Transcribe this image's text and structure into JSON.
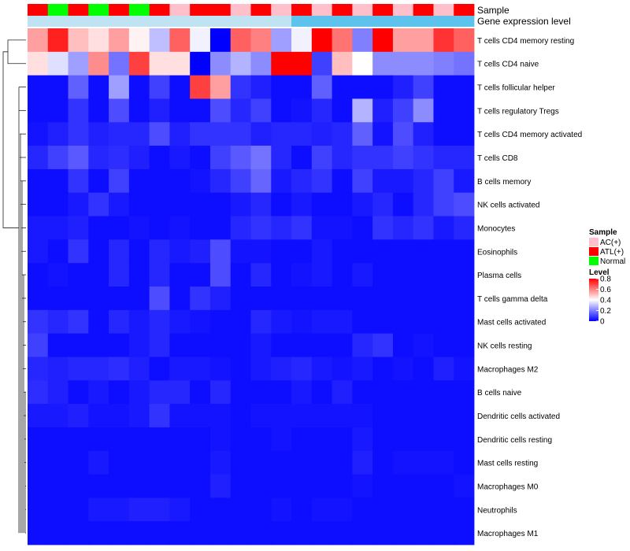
{
  "chart_data": {
    "type": "heatmap",
    "annotation_labels": {
      "sample": "Sample",
      "gene_expression": "Gene expression level"
    },
    "sample_annotation": [
      "ATL(+)",
      "Normal",
      "ATL(+)",
      "Normal",
      "ATL(+)",
      "Normal",
      "ATL(+)",
      "AC(+)",
      "ATL(+)",
      "ATL(+)",
      "AC(+)",
      "ATL(+)",
      "AC(+)",
      "ATL(+)",
      "AC(+)",
      "ATL(+)",
      "AC(+)",
      "ATL(+)",
      "AC(+)",
      "ATL(+)",
      "AC(+)",
      "ATL(+)"
    ],
    "gene_expression_colors": [
      "#bfe3f2",
      "#bfe3f2",
      "#bfe3f2",
      "#bfe3f2",
      "#bfe3f2",
      "#bfe3f2",
      "#bfe3f2",
      "#bfe3f2",
      "#bfe3f2",
      "#bfe3f2",
      "#bfe3f2",
      "#bfe3f2",
      "#bfe3f2",
      "#5ec3ec",
      "#5ec3ec",
      "#5ec3ec",
      "#5ec3ec",
      "#5ec3ec",
      "#5ec3ec",
      "#5ec3ec",
      "#5ec3ec",
      "#5ec3ec"
    ],
    "rows": [
      "T cells CD4 memory resting",
      "T cells CD4 naive",
      "T cells follicular helper",
      "T cells regulatory  Tregs",
      "T cells CD4 memory activated",
      "T cells CD8",
      "B cells memory",
      "NK cells activated",
      "Monocytes",
      "Eosinophils",
      "Plasma cells",
      "T cells gamma delta",
      "Mast cells activated",
      "NK cells resting",
      "Macrophages M2",
      "B cells naive",
      "Dendritic cells activated",
      "Dendritic cells resting",
      "Mast cells resting",
      "Macrophages M0",
      "Neutrophils",
      "Macrophages M1"
    ],
    "values": [
      [
        0.55,
        0.75,
        0.5,
        0.45,
        0.55,
        0.42,
        0.3,
        0.65,
        0.38,
        0.0,
        0.65,
        0.6,
        0.25,
        0.38,
        0.8,
        0.62,
        0.2,
        0.8,
        0.55,
        0.55,
        0.72,
        0.65
      ],
      [
        0.45,
        0.35,
        0.25,
        0.58,
        0.18,
        0.7,
        0.45,
        0.45,
        0.0,
        0.22,
        0.28,
        0.22,
        0.8,
        0.8,
        0.1,
        0.5,
        0.4,
        0.22,
        0.22,
        0.22,
        0.2,
        0.18
      ],
      [
        0.02,
        0.02,
        0.15,
        0.02,
        0.25,
        0.02,
        0.1,
        0.02,
        0.7,
        0.55,
        0.08,
        0.05,
        0.02,
        0.02,
        0.15,
        0.02,
        0.02,
        0.02,
        0.05,
        0.1,
        0.02,
        0.02
      ],
      [
        0.02,
        0.02,
        0.08,
        0.02,
        0.12,
        0.02,
        0.05,
        0.02,
        0.02,
        0.12,
        0.06,
        0.1,
        0.02,
        0.03,
        0.06,
        0.02,
        0.28,
        0.05,
        0.1,
        0.22,
        0.02,
        0.02
      ],
      [
        0.03,
        0.05,
        0.08,
        0.05,
        0.06,
        0.06,
        0.12,
        0.05,
        0.08,
        0.08,
        0.08,
        0.05,
        0.06,
        0.06,
        0.05,
        0.06,
        0.15,
        0.03,
        0.12,
        0.05,
        0.02,
        0.02
      ],
      [
        0.06,
        0.1,
        0.14,
        0.06,
        0.07,
        0.05,
        0.02,
        0.04,
        0.02,
        0.1,
        0.14,
        0.18,
        0.06,
        0.02,
        0.1,
        0.06,
        0.08,
        0.08,
        0.1,
        0.08,
        0.06,
        0.06
      ],
      [
        0.02,
        0.02,
        0.08,
        0.02,
        0.1,
        0.02,
        0.02,
        0.02,
        0.03,
        0.06,
        0.1,
        0.16,
        0.04,
        0.06,
        0.08,
        0.02,
        0.1,
        0.04,
        0.04,
        0.06,
        0.1,
        0.04
      ],
      [
        0.02,
        0.02,
        0.04,
        0.08,
        0.04,
        0.02,
        0.02,
        0.02,
        0.02,
        0.02,
        0.04,
        0.06,
        0.02,
        0.04,
        0.02,
        0.02,
        0.04,
        0.06,
        0.02,
        0.06,
        0.1,
        0.12
      ],
      [
        0.04,
        0.04,
        0.05,
        0.02,
        0.02,
        0.03,
        0.02,
        0.03,
        0.02,
        0.02,
        0.06,
        0.08,
        0.06,
        0.08,
        0.03,
        0.03,
        0.02,
        0.08,
        0.06,
        0.08,
        0.04,
        0.06
      ],
      [
        0.04,
        0.02,
        0.08,
        0.02,
        0.06,
        0.02,
        0.06,
        0.04,
        0.05,
        0.12,
        0.03,
        0.03,
        0.02,
        0.02,
        0.04,
        0.02,
        0.02,
        0.02,
        0.02,
        0.02,
        0.02,
        0.02
      ],
      [
        0.02,
        0.03,
        0.02,
        0.02,
        0.06,
        0.02,
        0.06,
        0.02,
        0.02,
        0.12,
        0.02,
        0.06,
        0.02,
        0.03,
        0.04,
        0.02,
        0.04,
        0.02,
        0.02,
        0.02,
        0.02,
        0.02
      ],
      [
        0.02,
        0.02,
        0.02,
        0.02,
        0.02,
        0.02,
        0.12,
        0.02,
        0.08,
        0.05,
        0.02,
        0.02,
        0.02,
        0.02,
        0.02,
        0.02,
        0.02,
        0.02,
        0.02,
        0.02,
        0.02,
        0.02
      ],
      [
        0.08,
        0.06,
        0.08,
        0.02,
        0.06,
        0.04,
        0.06,
        0.04,
        0.03,
        0.02,
        0.02,
        0.06,
        0.04,
        0.03,
        0.04,
        0.04,
        0.02,
        0.02,
        0.02,
        0.02,
        0.02,
        0.02
      ],
      [
        0.1,
        0.02,
        0.02,
        0.02,
        0.02,
        0.04,
        0.06,
        0.02,
        0.02,
        0.02,
        0.02,
        0.04,
        0.02,
        0.02,
        0.02,
        0.02,
        0.06,
        0.08,
        0.02,
        0.03,
        0.02,
        0.02
      ],
      [
        0.06,
        0.05,
        0.06,
        0.06,
        0.07,
        0.05,
        0.02,
        0.04,
        0.04,
        0.03,
        0.02,
        0.04,
        0.05,
        0.06,
        0.04,
        0.03,
        0.04,
        0.02,
        0.03,
        0.02,
        0.05,
        0.03
      ],
      [
        0.07,
        0.05,
        0.02,
        0.04,
        0.02,
        0.04,
        0.06,
        0.06,
        0.02,
        0.06,
        0.02,
        0.02,
        0.02,
        0.04,
        0.02,
        0.05,
        0.02,
        0.02,
        0.02,
        0.02,
        0.02,
        0.02
      ],
      [
        0.04,
        0.04,
        0.05,
        0.03,
        0.03,
        0.04,
        0.08,
        0.03,
        0.03,
        0.03,
        0.02,
        0.03,
        0.03,
        0.03,
        0.03,
        0.03,
        0.03,
        0.02,
        0.02,
        0.02,
        0.02,
        0.02
      ],
      [
        0.02,
        0.02,
        0.02,
        0.02,
        0.02,
        0.02,
        0.02,
        0.02,
        0.02,
        0.03,
        0.02,
        0.02,
        0.03,
        0.02,
        0.02,
        0.02,
        0.04,
        0.02,
        0.02,
        0.02,
        0.02,
        0.02
      ],
      [
        0.02,
        0.02,
        0.02,
        0.04,
        0.02,
        0.02,
        0.02,
        0.02,
        0.02,
        0.04,
        0.02,
        0.02,
        0.02,
        0.02,
        0.02,
        0.02,
        0.05,
        0.02,
        0.03,
        0.03,
        0.03,
        0.02
      ],
      [
        0.02,
        0.02,
        0.02,
        0.02,
        0.02,
        0.02,
        0.02,
        0.02,
        0.02,
        0.05,
        0.02,
        0.02,
        0.02,
        0.02,
        0.02,
        0.02,
        0.03,
        0.02,
        0.02,
        0.02,
        0.02,
        0.03
      ],
      [
        0.02,
        0.02,
        0.02,
        0.04,
        0.04,
        0.05,
        0.05,
        0.04,
        0.02,
        0.02,
        0.02,
        0.02,
        0.03,
        0.02,
        0.03,
        0.03,
        0.02,
        0.02,
        0.02,
        0.02,
        0.02,
        0.02
      ],
      [
        0.02,
        0.02,
        0.02,
        0.02,
        0.02,
        0.02,
        0.02,
        0.02,
        0.02,
        0.02,
        0.02,
        0.02,
        0.02,
        0.02,
        0.02,
        0.02,
        0.02,
        0.02,
        0.02,
        0.02,
        0.02,
        0.02
      ]
    ],
    "legend_sample": {
      "title": "Sample",
      "items": [
        {
          "label": "AC(+)",
          "color": "#ffc0cb"
        },
        {
          "label": "ATL(+)",
          "color": "#ff0000"
        },
        {
          "label": "Normal",
          "color": "#00ff00"
        }
      ]
    },
    "legend_level": {
      "title": "Level",
      "ticks": [
        "0.8",
        "0.6",
        "0.4",
        "0.2",
        "0"
      ],
      "range": [
        0,
        0.8
      ]
    },
    "color_scale": {
      "low": "#0000ff",
      "mid": "#ffffff",
      "high": "#ff0000",
      "mid_value": 0.4
    }
  }
}
